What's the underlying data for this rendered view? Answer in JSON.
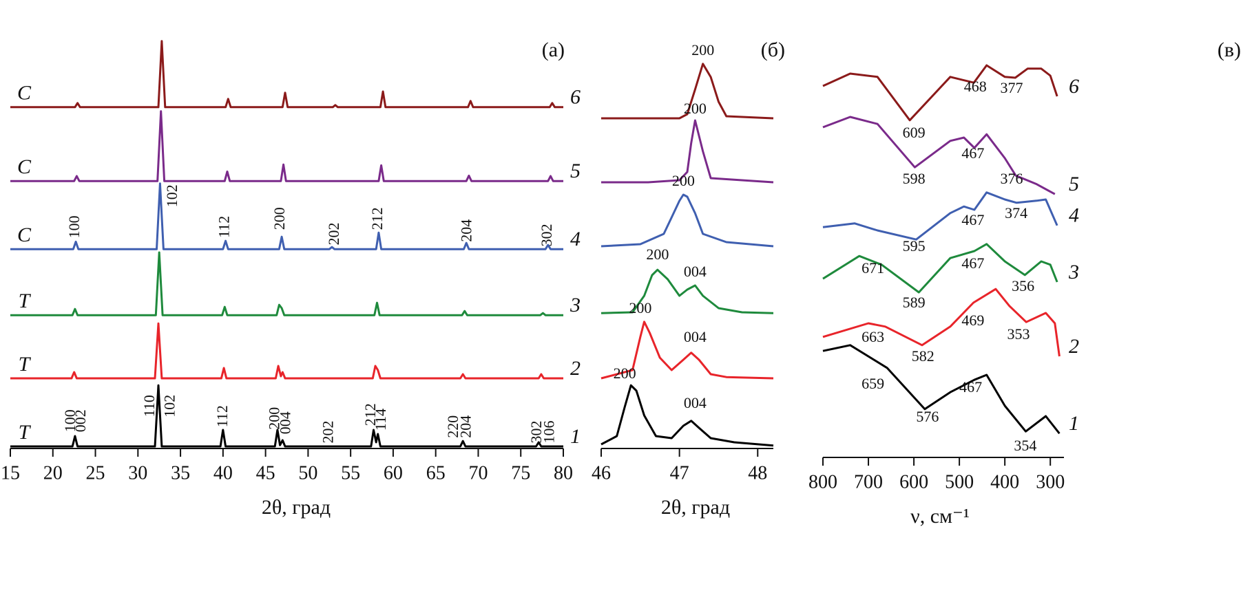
{
  "chart_data": [
    {
      "type": "line",
      "panel_label": "(а)",
      "xlabel": "2θ, град",
      "xlim": [
        15,
        80
      ],
      "ylim": [
        0,
        100
      ],
      "xticks": [
        15,
        20,
        25,
        30,
        35,
        40,
        45,
        50,
        55,
        60,
        65,
        70,
        75,
        80
      ],
      "annotation_rotation": -90,
      "series": [
        {
          "name": "1",
          "phase": "T",
          "color": "#000000",
          "x": [
            15,
            22.3,
            22.6,
            22.9,
            32.0,
            32.4,
            32.8,
            39.7,
            40.0,
            40.3,
            46.1,
            46.4,
            46.7,
            47.0,
            47.3,
            57.4,
            57.7,
            58.0,
            58.2,
            58.5,
            67.9,
            68.2,
            68.5,
            76.8,
            77.1,
            77.4,
            80
          ],
          "values": [
            0.5,
            0.5,
            3,
            0.5,
            0.5,
            15.3,
            0.5,
            0.5,
            4.5,
            0.5,
            0.5,
            4.5,
            0.8,
            2,
            0.5,
            0.5,
            4.5,
            1.5,
            3.5,
            0.5,
            0.5,
            1.8,
            0.5,
            0.5,
            1.5,
            0.5,
            0.5
          ]
        },
        {
          "name": "2",
          "phase": "T",
          "color": "#e8242a",
          "x": [
            15,
            22.2,
            22.5,
            22.8,
            32.0,
            32.4,
            32.8,
            39.8,
            40.1,
            40.4,
            46.2,
            46.5,
            46.8,
            47.0,
            47.3,
            57.6,
            57.9,
            58.2,
            58.5,
            67.9,
            68.2,
            68.5,
            77.1,
            77.4,
            77.7,
            80
          ],
          "values": [
            17,
            17,
            18.5,
            17,
            17,
            30.3,
            17,
            17,
            19.5,
            17,
            17,
            20,
            17.5,
            18.5,
            17,
            17,
            20,
            19,
            17,
            17,
            18,
            17,
            17,
            18,
            17,
            17
          ]
        },
        {
          "name": "3",
          "phase": "T",
          "color": "#1e8a3c",
          "x": [
            15,
            22.3,
            22.6,
            22.9,
            32.1,
            32.5,
            32.9,
            39.9,
            40.2,
            40.5,
            46.3,
            46.6,
            46.9,
            47.2,
            57.8,
            58.1,
            58.4,
            68.1,
            68.4,
            68.7,
            77.3,
            77.6,
            77.9,
            80
          ],
          "values": [
            32.3,
            32.3,
            33.8,
            32.3,
            32.3,
            47.5,
            32.3,
            32.3,
            34.3,
            32.3,
            32.3,
            34.8,
            34,
            32.3,
            32.3,
            35.3,
            32.3,
            32.3,
            33.3,
            32.3,
            32.3,
            32.8,
            32.3,
            32.3
          ]
        },
        {
          "name": "4",
          "phase": "C",
          "color": "#3f5fb0",
          "x": [
            15,
            22.4,
            22.7,
            23.0,
            32.2,
            32.6,
            33.0,
            40.0,
            40.3,
            40.6,
            46.6,
            46.9,
            47.2,
            52.5,
            52.8,
            53.1,
            58.0,
            58.3,
            58.6,
            68.3,
            68.6,
            68.9,
            77.9,
            78.2,
            78.5,
            80
          ],
          "values": [
            48.3,
            48.3,
            50.1,
            48.3,
            48.3,
            64.2,
            48.3,
            48.3,
            50.3,
            48.3,
            48.3,
            51.3,
            48.3,
            48.3,
            48.8,
            48.3,
            48.3,
            52.3,
            48.3,
            48.3,
            49.8,
            48.3,
            48.3,
            49.3,
            48.3,
            48.3
          ]
        },
        {
          "name": "5",
          "phase": "C",
          "color": "#7a2a8a",
          "x": [
            15,
            22.5,
            22.8,
            23.1,
            32.3,
            32.7,
            33.1,
            40.2,
            40.5,
            40.8,
            46.8,
            47.1,
            47.4,
            58.3,
            58.6,
            58.9,
            68.6,
            68.9,
            69.2,
            78.2,
            78.5,
            78.8,
            80
          ],
          "values": [
            64.8,
            64.8,
            66,
            64.8,
            64.8,
            81.7,
            64.8,
            64.8,
            67.1,
            64.8,
            64.8,
            68.8,
            64.8,
            64.8,
            68.6,
            64.8,
            64.8,
            66.1,
            64.8,
            64.8,
            66,
            64.8,
            64.8
          ]
        },
        {
          "name": "6",
          "phase": "C",
          "color": "#8b1a1a",
          "x": [
            15,
            22.6,
            22.9,
            23.2,
            32.4,
            32.8,
            33.2,
            40.3,
            40.6,
            40.9,
            47.0,
            47.3,
            47.6,
            52.9,
            53.2,
            53.5,
            58.5,
            58.8,
            59.1,
            68.8,
            69.1,
            69.4,
            78.4,
            78.7,
            79.0,
            80
          ],
          "values": [
            82.7,
            82.7,
            83.7,
            82.7,
            82.7,
            98.7,
            82.7,
            82.7,
            84.7,
            82.7,
            82.7,
            86.2,
            82.7,
            82.7,
            83.2,
            82.7,
            82.7,
            86.5,
            82.7,
            82.7,
            84.2,
            82.7,
            82.7,
            83.7,
            82.7,
            82.7
          ]
        }
      ],
      "annotations": [
        {
          "text": "100",
          "x": 22.7,
          "y": 53.7
        },
        {
          "text": "102",
          "x": 34.2,
          "y": 61.2
        },
        {
          "text": "112",
          "x": 40.3,
          "y": 53.7
        },
        {
          "text": "200",
          "x": 46.8,
          "y": 55.7
        },
        {
          "text": "202",
          "x": 53.2,
          "y": 52
        },
        {
          "text": "212",
          "x": 58.3,
          "y": 55.7
        },
        {
          "text": "204",
          "x": 68.8,
          "y": 52.8
        },
        {
          "text": "302",
          "x": 78.2,
          "y": 51.7
        },
        {
          "text": "100",
          "x": 22.2,
          "y": 6.7
        },
        {
          "text": "002",
          "x": 23.4,
          "y": 6.7
        },
        {
          "text": "110",
          "x": 31.5,
          "y": 10.3
        },
        {
          "text": "102",
          "x": 33.9,
          "y": 10.3
        },
        {
          "text": "112",
          "x": 40.1,
          "y": 7.8
        },
        {
          "text": "200",
          "x": 46.2,
          "y": 7.3
        },
        {
          "text": "004",
          "x": 47.5,
          "y": 6.2
        },
        {
          "text": "202",
          "x": 52.5,
          "y": 4
        },
        {
          "text": "212",
          "x": 57.5,
          "y": 8.2
        },
        {
          "text": "114",
          "x": 58.7,
          "y": 7
        },
        {
          "text": "220",
          "x": 67.2,
          "y": 5.3
        },
        {
          "text": "204",
          "x": 68.7,
          "y": 5.3
        },
        {
          "text": "302",
          "x": 77.0,
          "y": 4
        },
        {
          "text": "106",
          "x": 78.5,
          "y": 4
        }
      ]
    },
    {
      "type": "line",
      "panel_label": "(б)",
      "xlabel": "2θ, град",
      "xlim": [
        46,
        48.2
      ],
      "ylim": [
        0,
        100
      ],
      "xticks": [
        46,
        47,
        48
      ],
      "annotation_rotation": 0,
      "series": [
        {
          "name": "1",
          "color": "#000000",
          "x": [
            46.0,
            46.2,
            46.3,
            46.38,
            46.45,
            46.55,
            46.7,
            46.9,
            47.05,
            47.15,
            47.25,
            47.4,
            47.7,
            48.2
          ],
          "values": [
            1,
            3,
            10,
            15.3,
            14,
            8,
            3,
            2.5,
            5.5,
            6.7,
            5,
            2.5,
            1.5,
            0.7
          ]
        },
        {
          "name": "2",
          "color": "#e8242a",
          "x": [
            46.0,
            46.4,
            46.5,
            46.55,
            46.62,
            46.75,
            46.9,
            47.05,
            47.15,
            47.25,
            47.4,
            47.6,
            48.2
          ],
          "values": [
            17,
            19,
            27,
            30.7,
            28,
            22,
            19,
            21.5,
            23.2,
            21.5,
            18,
            17.3,
            17
          ]
        },
        {
          "name": "3",
          "color": "#1e8a3c",
          "x": [
            46.0,
            46.4,
            46.55,
            46.65,
            46.72,
            46.85,
            47.0,
            47.1,
            47.2,
            47.3,
            47.5,
            47.8,
            48.2
          ],
          "values": [
            32.8,
            33,
            37,
            42,
            43.3,
            41,
            37,
            38.5,
            39.5,
            37,
            34,
            33,
            32.8
          ]
        },
        {
          "name": "4",
          "color": "#3f5fb0",
          "x": [
            46.0,
            46.5,
            46.8,
            46.9,
            47.0,
            47.05,
            47.1,
            47.2,
            47.3,
            47.6,
            48.2
          ],
          "values": [
            49,
            49.5,
            52,
            56,
            60,
            61.5,
            61,
            57,
            52,
            50,
            49
          ]
        },
        {
          "name": "5",
          "color": "#7a2a8a",
          "x": [
            46.0,
            46.6,
            47.0,
            47.1,
            47.15,
            47.2,
            47.3,
            47.4,
            48.2
          ],
          "values": [
            64.5,
            64.5,
            65,
            67,
            74,
            79.5,
            72,
            65.5,
            64.5
          ]
        },
        {
          "name": "6",
          "color": "#8b1a1a",
          "x": [
            46.0,
            46.5,
            47.0,
            47.1,
            47.2,
            47.3,
            47.4,
            47.5,
            47.6,
            48.2
          ],
          "values": [
            80,
            80,
            80,
            81,
            87,
            93.2,
            90,
            84,
            80.5,
            80
          ]
        }
      ],
      "annotations": [
        {
          "text": "200",
          "x": 47.3,
          "y": 96.2
        },
        {
          "text": "200",
          "x": 47.2,
          "y": 82
        },
        {
          "text": "200",
          "x": 47.05,
          "y": 64.5
        },
        {
          "text": "200",
          "x": 46.72,
          "y": 46.7
        },
        {
          "text": "004",
          "x": 47.2,
          "y": 42.5
        },
        {
          "text": "200",
          "x": 46.5,
          "y": 33.7
        },
        {
          "text": "004",
          "x": 47.2,
          "y": 26.7
        },
        {
          "text": "200",
          "x": 46.3,
          "y": 17.8
        },
        {
          "text": "004",
          "x": 47.2,
          "y": 10.7
        }
      ]
    },
    {
      "type": "line",
      "panel_label": "(в)",
      "xlabel": "ν, см⁻¹",
      "xlim": [
        800,
        270
      ],
      "ylim": [
        0,
        100
      ],
      "xticks": [
        800,
        700,
        600,
        500,
        400,
        300
      ],
      "annotation_rotation": 0,
      "series": [
        {
          "name": "1",
          "color": "#000000",
          "x": [
            800,
            740,
            659,
            576,
            520,
            467,
            440,
            400,
            354,
            310,
            280
          ],
          "values": [
            25.8,
            27.2,
            21.7,
            11.7,
            15.8,
            18.8,
            20,
            12.5,
            6.3,
            10,
            5.8
          ]
        },
        {
          "name": "2",
          "color": "#e8242a",
          "x": [
            800,
            700,
            663,
            582,
            520,
            469,
            420,
            390,
            353,
            310,
            290,
            280
          ],
          "values": [
            29.2,
            32.5,
            31.7,
            27.2,
            31.7,
            37.5,
            40.8,
            36.7,
            32.8,
            35,
            32.5,
            24.5
          ]
        },
        {
          "name": "3",
          "color": "#1e8a3c",
          "x": [
            800,
            720,
            671,
            589,
            520,
            467,
            440,
            400,
            356,
            320,
            300,
            285
          ],
          "values": [
            43.3,
            48.8,
            46.7,
            40,
            48.3,
            50,
            51.7,
            47.5,
            44.2,
            47.5,
            46.7,
            42.5
          ]
        },
        {
          "name": "4",
          "color": "#3f5fb0",
          "x": [
            800,
            730,
            680,
            595,
            520,
            490,
            467,
            440,
            400,
            374,
            330,
            310,
            285
          ],
          "values": [
            55.8,
            56.7,
            55,
            52.8,
            59.2,
            60.8,
            60,
            64.2,
            62.5,
            61.7,
            62.2,
            62.5,
            56.2
          ]
        },
        {
          "name": "5",
          "color": "#7a2a8a",
          "x": [
            800,
            740,
            680,
            598,
            520,
            490,
            467,
            440,
            400,
            376,
            330,
            290
          ],
          "values": [
            80,
            82.5,
            80.8,
            70.3,
            76.7,
            77.5,
            75,
            78.3,
            72.5,
            68.3,
            66.2,
            63.8
          ]
        },
        {
          "name": "6",
          "color": "#8b1a1a",
          "x": [
            800,
            740,
            680,
            609,
            520,
            468,
            440,
            400,
            377,
            350,
            320,
            300,
            285
          ],
          "values": [
            90,
            93,
            92.2,
            81.7,
            92.2,
            90.8,
            95,
            92.2,
            92,
            94.2,
            94.2,
            92.5,
            87.5
          ]
        }
      ],
      "annotations": [
        {
          "text": "609",
          "x": 600,
          "y": 78.3
        },
        {
          "text": "468",
          "x": 465,
          "y": 89.5
        },
        {
          "text": "377",
          "x": 385,
          "y": 89.2
        },
        {
          "text": "598",
          "x": 600,
          "y": 67.2
        },
        {
          "text": "467",
          "x": 470,
          "y": 73.3
        },
        {
          "text": "376",
          "x": 385,
          "y": 67.2
        },
        {
          "text": "595",
          "x": 600,
          "y": 50.8
        },
        {
          "text": "467",
          "x": 470,
          "y": 57.2
        },
        {
          "text": "374",
          "x": 375,
          "y": 58.8
        },
        {
          "text": "671",
          "x": 690,
          "y": 45.5
        },
        {
          "text": "589",
          "x": 600,
          "y": 37.2
        },
        {
          "text": "467",
          "x": 470,
          "y": 46.7
        },
        {
          "text": "356",
          "x": 360,
          "y": 41.2
        },
        {
          "text": "663",
          "x": 690,
          "y": 28.8
        },
        {
          "text": "582",
          "x": 580,
          "y": 24.2
        },
        {
          "text": "469",
          "x": 470,
          "y": 32.8
        },
        {
          "text": "353",
          "x": 370,
          "y": 29.5
        },
        {
          "text": "659",
          "x": 690,
          "y": 17.5
        },
        {
          "text": "576",
          "x": 570,
          "y": 9.5
        },
        {
          "text": "467",
          "x": 475,
          "y": 16.7
        },
        {
          "text": "354",
          "x": 355,
          "y": 2.5
        }
      ]
    }
  ]
}
